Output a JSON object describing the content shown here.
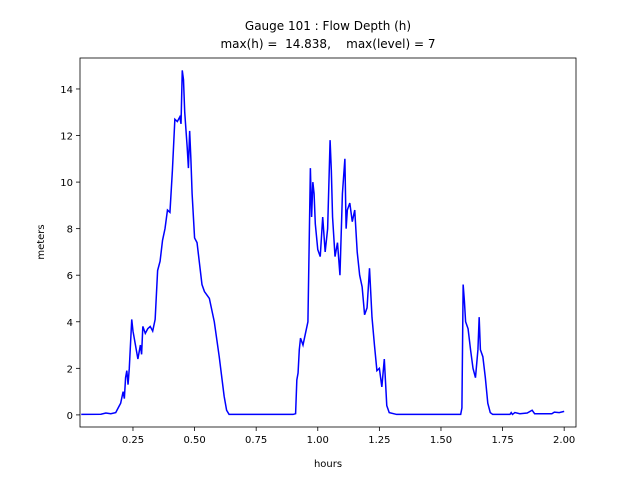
{
  "chart_data": {
    "type": "line",
    "title": [
      "Gauge 101 : Flow Depth (h)",
      "max(h) =  14.838,    max(level) = 7"
    ],
    "xlabel": "hours",
    "ylabel": "meters",
    "xlim": [
      0.035,
      2.048
    ],
    "ylim": [
      -0.52,
      15.33
    ],
    "xticks": [
      0.25,
      {
        "value": 0.5,
        "label": "0.50"
      },
      0.75,
      {
        "value": 1.0,
        "label": "1.00"
      },
      1.25,
      {
        "value": 1.5,
        "label": "1.50"
      },
      1.75,
      {
        "value": 2.0,
        "label": "2.00"
      }
    ],
    "yticks": [
      0,
      2,
      4,
      6,
      8,
      10,
      12,
      14
    ],
    "series": [
      {
        "color": "#0000ff",
        "x": [
          0.04,
          0.12,
          0.14,
          0.16,
          0.18,
          0.19,
          0.2,
          0.21,
          0.215,
          0.22,
          0.225,
          0.23,
          0.235,
          0.245,
          0.25,
          0.26,
          0.27,
          0.28,
          0.285,
          0.29,
          0.3,
          0.31,
          0.32,
          0.33,
          0.34,
          0.35,
          0.36,
          0.37,
          0.38,
          0.39,
          0.4,
          0.41,
          0.42,
          0.43,
          0.44,
          0.445,
          0.45,
          0.455,
          0.46,
          0.47,
          0.475,
          0.48,
          0.485,
          0.49,
          0.5,
          0.51,
          0.52,
          0.53,
          0.54,
          0.56,
          0.58,
          0.6,
          0.62,
          0.63,
          0.64,
          0.9,
          0.91,
          0.915,
          0.92,
          0.925,
          0.93,
          0.94,
          0.95,
          0.96,
          0.97,
          0.975,
          0.98,
          0.985,
          0.99,
          1.0,
          1.01,
          1.02,
          1.03,
          1.04,
          1.05,
          1.055,
          1.06,
          1.07,
          1.08,
          1.09,
          1.1,
          1.11,
          1.115,
          1.12,
          1.13,
          1.14,
          1.15,
          1.16,
          1.17,
          1.18,
          1.19,
          1.2,
          1.21,
          1.22,
          1.23,
          1.24,
          1.25,
          1.26,
          1.27,
          1.28,
          1.29,
          1.32,
          1.58,
          1.585,
          1.59,
          1.595,
          1.6,
          1.61,
          1.62,
          1.63,
          1.64,
          1.65,
          1.655,
          1.66,
          1.67,
          1.68,
          1.69,
          1.7,
          1.71,
          1.78,
          1.785,
          1.79,
          1.8,
          1.82,
          1.85,
          1.87,
          1.88,
          1.95,
          1.96,
          1.98,
          2.0
        ],
        "values": [
          0.02,
          0.03,
          0.08,
          0.05,
          0.1,
          0.3,
          0.5,
          1.0,
          0.7,
          1.6,
          1.9,
          1.3,
          2.0,
          4.1,
          3.6,
          3.0,
          2.4,
          3.0,
          2.6,
          3.8,
          3.5,
          3.7,
          3.8,
          3.6,
          4.1,
          6.2,
          6.6,
          7.5,
          8.0,
          8.8,
          8.7,
          10.5,
          12.7,
          12.6,
          12.8,
          12.5,
          14.8,
          14.4,
          13.0,
          11.5,
          10.6,
          12.2,
          11.0,
          9.5,
          7.6,
          7.4,
          6.5,
          5.6,
          5.3,
          5.0,
          4.0,
          2.5,
          0.8,
          0.2,
          0.02,
          0.02,
          0.05,
          1.5,
          1.8,
          2.8,
          3.3,
          3.0,
          3.5,
          4.0,
          10.6,
          8.5,
          10.0,
          9.5,
          8.2,
          7.1,
          6.8,
          8.5,
          7.0,
          8.0,
          11.8,
          10.5,
          8.5,
          6.8,
          7.4,
          6.0,
          9.5,
          11.0,
          8.0,
          8.8,
          9.1,
          8.3,
          8.8,
          7.0,
          6.0,
          5.5,
          4.3,
          4.6,
          6.3,
          4.2,
          3.0,
          1.9,
          2.0,
          1.2,
          2.4,
          0.4,
          0.1,
          0.02,
          0.02,
          0.3,
          5.6,
          4.9,
          4.0,
          3.7,
          2.8,
          2.0,
          1.6,
          2.8,
          4.2,
          2.8,
          2.5,
          1.6,
          0.5,
          0.1,
          0.02,
          0.02,
          0.1,
          0.02,
          0.1,
          0.05,
          0.08,
          0.2,
          0.05,
          0.05,
          0.12,
          0.1,
          0.15
        ]
      }
    ]
  }
}
